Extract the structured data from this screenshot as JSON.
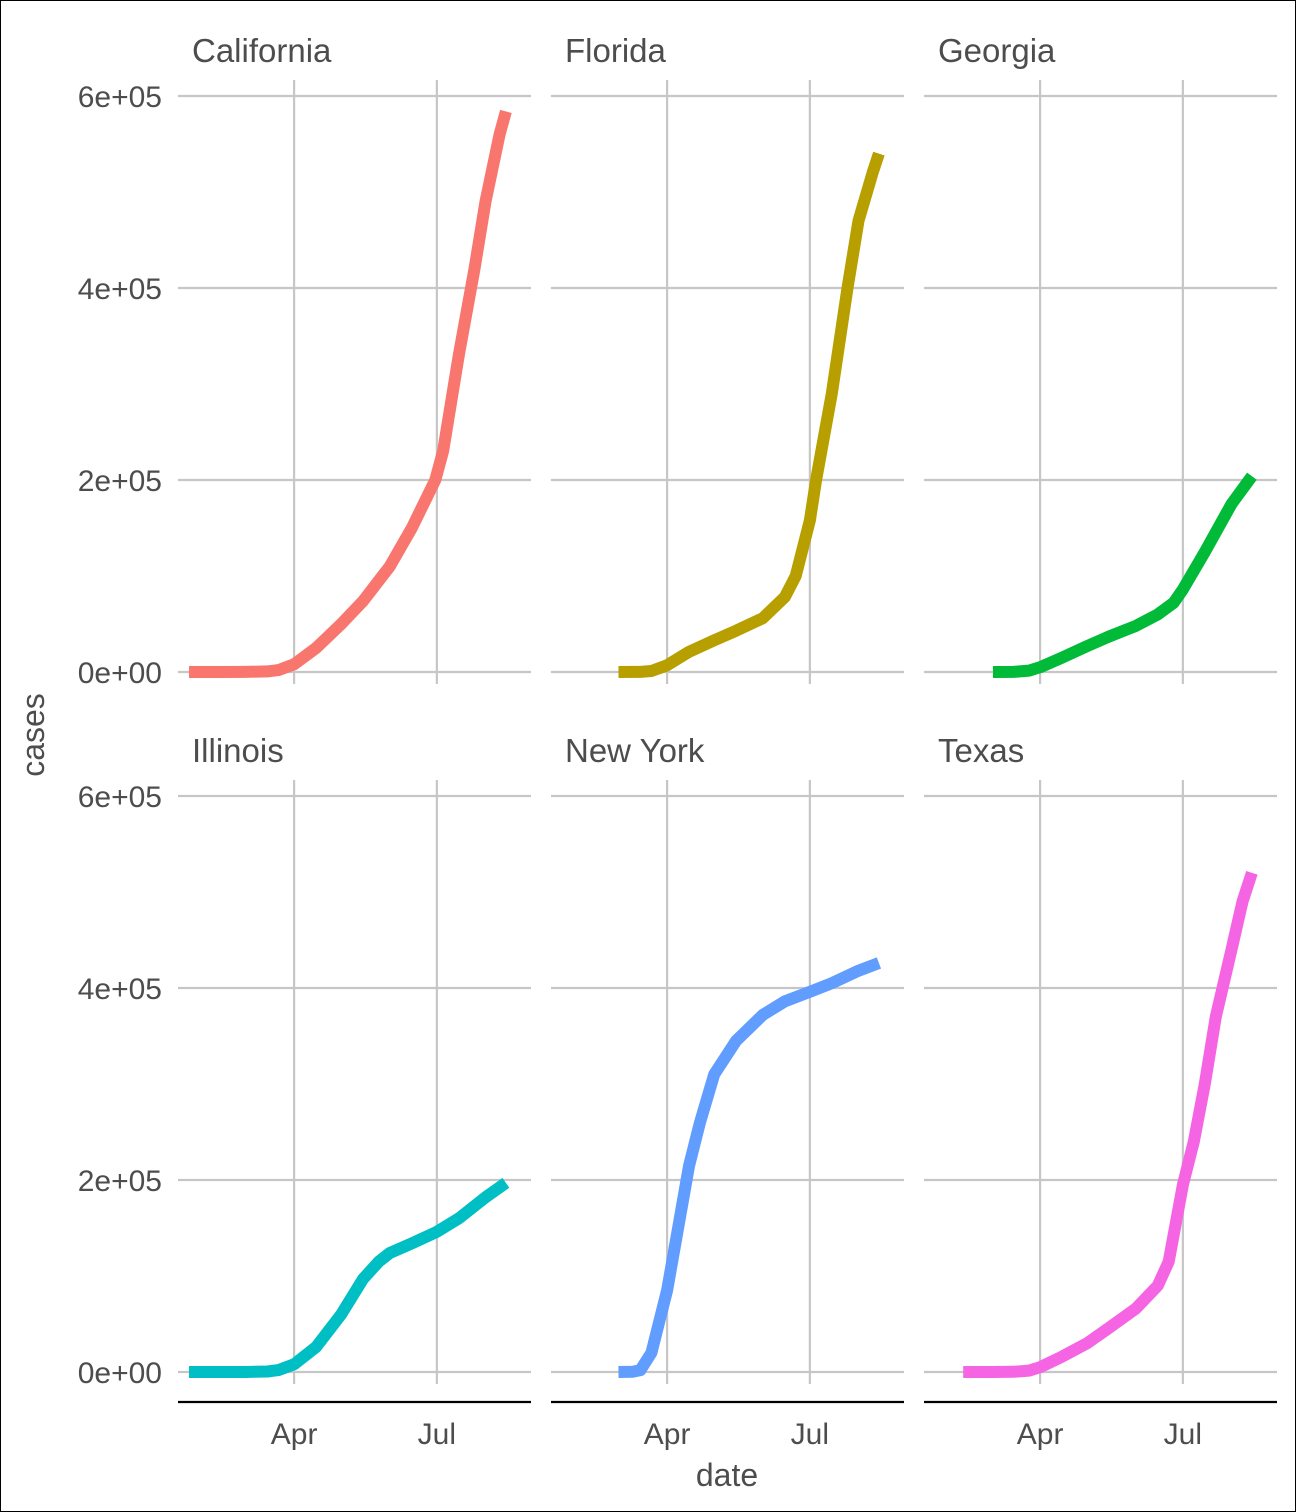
{
  "chart_data": {
    "type": "line",
    "layout": "facet_wrap",
    "xlabel": "date",
    "ylabel": "cases",
    "x_ticks": [
      {
        "date": "2020-04-01",
        "label": "Apr"
      },
      {
        "date": "2020-07-01",
        "label": "Jul"
      }
    ],
    "y_ticks": [
      {
        "value": 0,
        "label": "0e+00"
      },
      {
        "value": 200000,
        "label": "2e+05"
      },
      {
        "value": 400000,
        "label": "4e+05"
      },
      {
        "value": 600000,
        "label": "6e+05"
      }
    ],
    "xlim": [
      "2020-01-18",
      "2020-08-30"
    ],
    "ylim": [
      -30000,
      600000
    ],
    "legend": "none",
    "grid": true,
    "panels": [
      {
        "name": "California",
        "color": "#F8766D",
        "points": [
          [
            "2020-01-25",
            0
          ],
          [
            "2020-02-15",
            0
          ],
          [
            "2020-03-01",
            60
          ],
          [
            "2020-03-15",
            600
          ],
          [
            "2020-03-22",
            2000
          ],
          [
            "2020-04-01",
            8000
          ],
          [
            "2020-04-15",
            25000
          ],
          [
            "2020-05-01",
            50000
          ],
          [
            "2020-05-15",
            74000
          ],
          [
            "2020-06-01",
            110000
          ],
          [
            "2020-06-15",
            150000
          ],
          [
            "2020-06-30",
            200000
          ],
          [
            "2020-07-05",
            230000
          ],
          [
            "2020-07-15",
            330000
          ],
          [
            "2020-07-25",
            420000
          ],
          [
            "2020-08-01",
            490000
          ],
          [
            "2020-08-10",
            560000
          ],
          [
            "2020-08-14",
            584000
          ]
        ]
      },
      {
        "name": "Florida",
        "color": "#B79F00",
        "points": [
          [
            "2020-03-01",
            0
          ],
          [
            "2020-03-15",
            100
          ],
          [
            "2020-03-22",
            1000
          ],
          [
            "2020-04-01",
            7000
          ],
          [
            "2020-04-15",
            21000
          ],
          [
            "2020-05-01",
            33000
          ],
          [
            "2020-05-15",
            43000
          ],
          [
            "2020-06-01",
            56000
          ],
          [
            "2020-06-15",
            78000
          ],
          [
            "2020-06-22",
            100000
          ],
          [
            "2020-07-01",
            158000
          ],
          [
            "2020-07-05",
            200000
          ],
          [
            "2020-07-15",
            290000
          ],
          [
            "2020-07-25",
            400000
          ],
          [
            "2020-08-01",
            470000
          ],
          [
            "2020-08-10",
            520000
          ],
          [
            "2020-08-14",
            540000
          ]
        ]
      },
      {
        "name": "Georgia",
        "color": "#00BA38",
        "points": [
          [
            "2020-03-02",
            0
          ],
          [
            "2020-03-15",
            100
          ],
          [
            "2020-03-25",
            1500
          ],
          [
            "2020-04-01",
            5000
          ],
          [
            "2020-04-15",
            15000
          ],
          [
            "2020-05-01",
            27000
          ],
          [
            "2020-05-15",
            37000
          ],
          [
            "2020-06-01",
            48000
          ],
          [
            "2020-06-15",
            60000
          ],
          [
            "2020-06-25",
            72000
          ],
          [
            "2020-07-01",
            86000
          ],
          [
            "2020-07-15",
            125000
          ],
          [
            "2020-08-01",
            175000
          ],
          [
            "2020-08-14",
            204000
          ]
        ]
      },
      {
        "name": "Illinois",
        "color": "#00BFC4",
        "points": [
          [
            "2020-01-25",
            0
          ],
          [
            "2020-02-15",
            0
          ],
          [
            "2020-03-01",
            20
          ],
          [
            "2020-03-15",
            500
          ],
          [
            "2020-03-22",
            2000
          ],
          [
            "2020-04-01",
            8000
          ],
          [
            "2020-04-15",
            26000
          ],
          [
            "2020-05-01",
            60000
          ],
          [
            "2020-05-15",
            97000
          ],
          [
            "2020-05-25",
            115000
          ],
          [
            "2020-06-01",
            124000
          ],
          [
            "2020-06-15",
            134000
          ],
          [
            "2020-07-01",
            146000
          ],
          [
            "2020-07-15",
            160000
          ],
          [
            "2020-08-01",
            182000
          ],
          [
            "2020-08-14",
            197000
          ]
        ]
      },
      {
        "name": "New York",
        "color": "#619CFF",
        "points": [
          [
            "2020-03-01",
            0
          ],
          [
            "2020-03-10",
            200
          ],
          [
            "2020-03-15",
            2000
          ],
          [
            "2020-03-22",
            20000
          ],
          [
            "2020-04-01",
            85000
          ],
          [
            "2020-04-08",
            150000
          ],
          [
            "2020-04-15",
            215000
          ],
          [
            "2020-04-22",
            260000
          ],
          [
            "2020-05-01",
            310000
          ],
          [
            "2020-05-15",
            345000
          ],
          [
            "2020-06-01",
            372000
          ],
          [
            "2020-06-15",
            386000
          ],
          [
            "2020-07-01",
            396000
          ],
          [
            "2020-07-15",
            405000
          ],
          [
            "2020-08-01",
            418000
          ],
          [
            "2020-08-14",
            426000
          ]
        ]
      },
      {
        "name": "Texas",
        "color": "#F564E3",
        "points": [
          [
            "2020-02-12",
            0
          ],
          [
            "2020-03-01",
            0
          ],
          [
            "2020-03-15",
            200
          ],
          [
            "2020-03-25",
            1500
          ],
          [
            "2020-04-01",
            5000
          ],
          [
            "2020-04-15",
            16000
          ],
          [
            "2020-05-01",
            30000
          ],
          [
            "2020-05-15",
            46000
          ],
          [
            "2020-06-01",
            66000
          ],
          [
            "2020-06-15",
            90000
          ],
          [
            "2020-06-22",
            115000
          ],
          [
            "2020-07-01",
            195000
          ],
          [
            "2020-07-08",
            240000
          ],
          [
            "2020-07-15",
            300000
          ],
          [
            "2020-07-22",
            370000
          ],
          [
            "2020-08-01",
            440000
          ],
          [
            "2020-08-08",
            490000
          ],
          [
            "2020-08-14",
            520000
          ]
        ]
      }
    ]
  }
}
